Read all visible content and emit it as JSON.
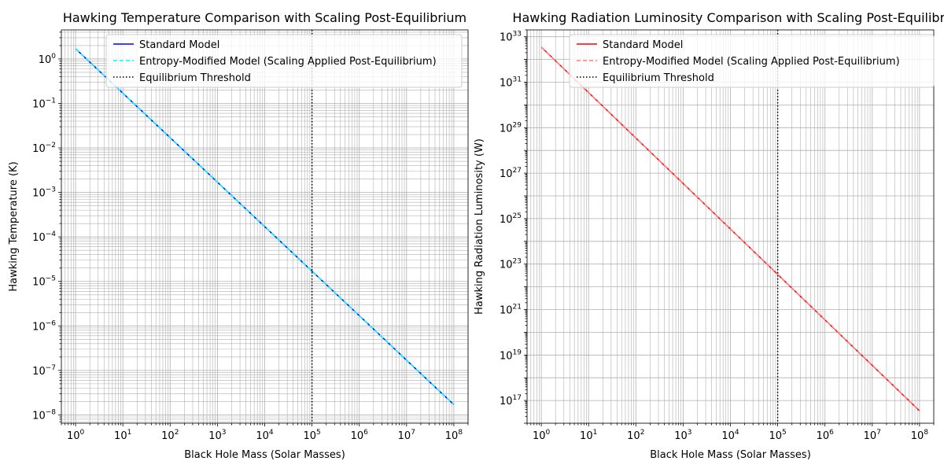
{
  "chart_data": [
    {
      "type": "line",
      "title": "Hawking Temperature Comparison with Scaling Post-Equilibrium",
      "xlabel": "Black Hole Mass (Solar Masses)",
      "ylabel": "Hawking Temperature (K)",
      "xscale": "log",
      "yscale": "log",
      "xlim": [
        0.5,
        200000000.0
      ],
      "ylim": [
        6.5e-09,
        4.5
      ],
      "x_ticks": [
        {
          "base": "10",
          "exp": "0"
        },
        {
          "base": "10",
          "exp": "1"
        },
        {
          "base": "10",
          "exp": "2"
        },
        {
          "base": "10",
          "exp": "3"
        },
        {
          "base": "10",
          "exp": "4"
        },
        {
          "base": "10",
          "exp": "5"
        },
        {
          "base": "10",
          "exp": "6"
        },
        {
          "base": "10",
          "exp": "7"
        },
        {
          "base": "10",
          "exp": "8"
        }
      ],
      "y_ticks": [
        {
          "base": "10",
          "exp": "−8"
        },
        {
          "base": "10",
          "exp": "−7"
        },
        {
          "base": "10",
          "exp": "−6"
        },
        {
          "base": "10",
          "exp": "−5"
        },
        {
          "base": "10",
          "exp": "−4"
        },
        {
          "base": "10",
          "exp": "−3"
        },
        {
          "base": "10",
          "exp": "−2"
        },
        {
          "base": "10",
          "exp": "−1"
        },
        {
          "base": "10",
          "exp": "0"
        }
      ],
      "grid": true,
      "minor_grid": true,
      "legend": "upper right",
      "series": [
        {
          "name": "Standard Model",
          "x": [
            1,
            100000000
          ],
          "y": [
            1.7,
            1.7e-08
          ],
          "color": "#0000ff",
          "style": "solid"
        },
        {
          "name": "Entropy-Modified Model (Scaling Applied Post-Equilibrium)",
          "x": [
            1,
            100000000
          ],
          "y": [
            1.7,
            1.7e-08
          ],
          "color": "#00ffff",
          "style": "dashed"
        }
      ],
      "vline": {
        "name": "Equilibrium Threshold",
        "x": 100000,
        "color": "#000000",
        "style": "dotted"
      }
    },
    {
      "type": "line",
      "title": "Hawking Radiation Luminosity Comparison with Scaling Post-Equilibri",
      "xlabel": "Black Hole Mass (Solar Masses)",
      "ylabel": "Hawking Radiation Luminosity (W)",
      "xscale": "log",
      "yscale": "log",
      "xlim": [
        0.5,
        200000000.0
      ],
      "ylim": [
        1e+16,
        2e+33
      ],
      "x_ticks": [
        {
          "base": "10",
          "exp": "0"
        },
        {
          "base": "10",
          "exp": "1"
        },
        {
          "base": "10",
          "exp": "2"
        },
        {
          "base": "10",
          "exp": "3"
        },
        {
          "base": "10",
          "exp": "4"
        },
        {
          "base": "10",
          "exp": "5"
        },
        {
          "base": "10",
          "exp": "6"
        },
        {
          "base": "10",
          "exp": "7"
        },
        {
          "base": "10",
          "exp": "8"
        }
      ],
      "y_ticks": [
        {
          "base": "10",
          "exp": "17"
        },
        {
          "base": "10",
          "exp": "19"
        },
        {
          "base": "10",
          "exp": "21"
        },
        {
          "base": "10",
          "exp": "23"
        },
        {
          "base": "10",
          "exp": "25"
        },
        {
          "base": "10",
          "exp": "27"
        },
        {
          "base": "10",
          "exp": "29"
        },
        {
          "base": "10",
          "exp": "31"
        },
        {
          "base": "10",
          "exp": "33"
        }
      ],
      "grid": true,
      "minor_grid": false,
      "legend": "upper right",
      "series": [
        {
          "name": "Standard Model",
          "x": [
            1,
            100000000
          ],
          "y": [
            3.5e+32,
            3.5e+16
          ],
          "color": "#ff0000",
          "style": "solid"
        },
        {
          "name": "Entropy-Modified Model (Scaling Applied Post-Equilibrium)",
          "x": [
            1,
            100000000
          ],
          "y": [
            3.5e+32,
            3.5e+16
          ],
          "color": "#ff7f7f",
          "style": "dashed"
        }
      ],
      "vline": {
        "name": "Equilibrium Threshold",
        "x": 100000,
        "color": "#000000",
        "style": "dotted"
      }
    }
  ]
}
